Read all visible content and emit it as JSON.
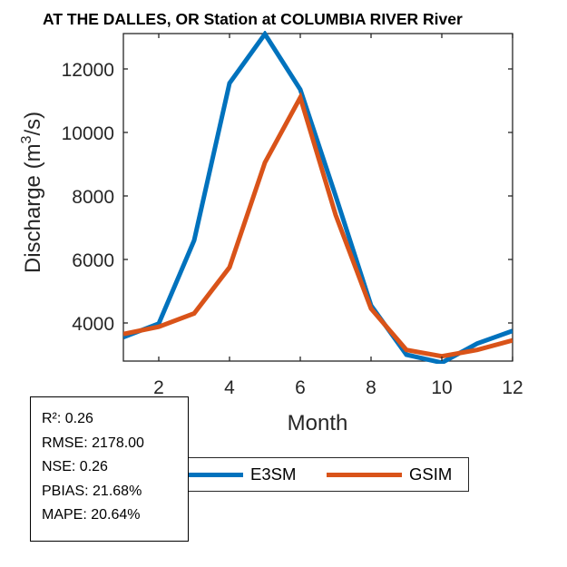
{
  "chart_data": {
    "type": "line",
    "title": "AT THE DALLES, OR  Station at  COLUMBIA RIVER  River",
    "xlabel": "Month",
    "ylabel": "Discharge (m3/s)",
    "ylabel_parts": {
      "main": "Discharge (m",
      "sup": "3",
      "tail": "/s)"
    },
    "xlim": [
      1,
      12
    ],
    "ylim": [
      2800,
      13114
    ],
    "xticks": [
      2,
      4,
      6,
      8,
      10,
      12
    ],
    "yticks": [
      4000,
      6000,
      8000,
      10000,
      12000
    ],
    "x": [
      1,
      2,
      3,
      4,
      5,
      6,
      7,
      8,
      9,
      10,
      11,
      12
    ],
    "series": [
      {
        "name": "E3SM",
        "color": "#0072BD",
        "values": [
          3550,
          3980,
          6600,
          11550,
          13100,
          11350,
          8000,
          4550,
          3000,
          2750,
          3350,
          3750
        ]
      },
      {
        "name": "GSIM",
        "color": "#D95319",
        "values": [
          3650,
          3880,
          4300,
          5750,
          9050,
          11100,
          7400,
          4450,
          3150,
          2950,
          3150,
          3450
        ]
      }
    ],
    "legend_position": "bottom",
    "grid": false
  },
  "stats": {
    "r2": "R²: 0.26",
    "rmse": "RMSE: 2178.00",
    "nse": "NSE: 0.26",
    "pbias": "PBIAS: 21.68%",
    "mape": "MAPE: 20.64%"
  }
}
